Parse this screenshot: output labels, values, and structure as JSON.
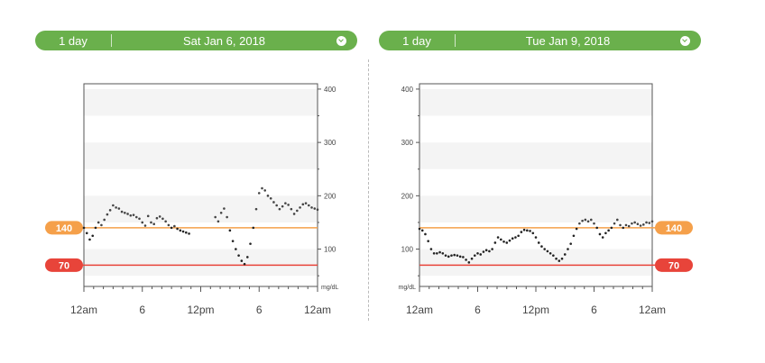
{
  "panels": [
    {
      "range_label": "1 day",
      "date_label": "Sat Jan 6, 2018",
      "icon": "chevron-down-icon"
    },
    {
      "range_label": "1 day",
      "date_label": "Tue Jan 9, 2018",
      "icon": "chevron-down-icon"
    }
  ],
  "colors": {
    "header_green": "#6ab04c",
    "high": "#f5a04a",
    "low": "#e8443a",
    "band": "#f4f4f4",
    "dots": "#222222"
  },
  "chart_data": [
    {
      "type": "scatter",
      "title": "Sat Jan 6, 2018",
      "xlabel": "",
      "ylabel": "mg/dL",
      "xlim": [
        0,
        24
      ],
      "ylim": [
        30,
        410
      ],
      "x_ticks": [
        "12am",
        "6",
        "12pm",
        "6",
        "12am"
      ],
      "y_ticks": [
        100,
        200,
        300,
        400
      ],
      "y_axis_side": "right",
      "grid_bands": [
        [
          50,
          100
        ],
        [
          150,
          200
        ],
        [
          250,
          300
        ],
        [
          350,
          400
        ]
      ],
      "thresholds": {
        "high": 140,
        "low": 70
      },
      "segments": [
        {
          "x": [
            0,
            0.3,
            0.6,
            0.9,
            1.2,
            1.5,
            1.8,
            2.1,
            2.4,
            2.7,
            3.0,
            3.3,
            3.6,
            3.9,
            4.2,
            4.5,
            4.8,
            5.1,
            5.4,
            5.7,
            6.0,
            6.3,
            6.6,
            6.9,
            7.2,
            7.5,
            7.8,
            8.1,
            8.4,
            8.7,
            9.0,
            9.3,
            9.6,
            9.9,
            10.2,
            10.5,
            10.8
          ],
          "y": [
            140,
            130,
            118,
            125,
            140,
            150,
            145,
            155,
            165,
            173,
            182,
            178,
            176,
            170,
            168,
            166,
            163,
            164,
            160,
            157,
            150,
            144,
            162,
            150,
            147,
            158,
            161,
            157,
            152,
            145,
            140,
            143,
            138,
            135,
            133,
            131,
            129
          ]
        },
        {
          "x": [
            13.5,
            13.8,
            14.1,
            14.4,
            14.7,
            15.0,
            15.3,
            15.6,
            15.9,
            16.2,
            16.5,
            16.8,
            17.1,
            17.4,
            17.7,
            18.0,
            18.3,
            18.6,
            18.9,
            19.2,
            19.5,
            19.8,
            20.1,
            20.4,
            20.7,
            21.0,
            21.3,
            21.6,
            21.9,
            22.2,
            22.5,
            22.8,
            23.1,
            23.4,
            23.7,
            24.0
          ],
          "y": [
            160,
            152,
            168,
            176,
            160,
            135,
            115,
            100,
            88,
            78,
            72,
            85,
            110,
            140,
            175,
            205,
            214,
            210,
            200,
            195,
            188,
            182,
            175,
            180,
            186,
            183,
            175,
            166,
            172,
            178,
            184,
            186,
            182,
            178,
            176,
            174
          ]
        }
      ]
    },
    {
      "type": "scatter",
      "title": "Tue Jan 9, 2018",
      "xlabel": "",
      "ylabel": "mg/dL",
      "xlim": [
        0,
        24
      ],
      "ylim": [
        30,
        410
      ],
      "x_ticks": [
        "12am",
        "6",
        "12pm",
        "6",
        "12am"
      ],
      "y_ticks": [
        100,
        200,
        300,
        400
      ],
      "y_axis_side": "left",
      "grid_bands": [
        [
          50,
          100
        ],
        [
          150,
          200
        ],
        [
          250,
          300
        ],
        [
          350,
          400
        ]
      ],
      "thresholds": {
        "high": 140,
        "low": 70
      },
      "segments": [
        {
          "x": [
            0,
            0.3,
            0.6,
            0.9,
            1.2,
            1.5,
            1.8,
            2.1,
            2.4,
            2.7,
            3.0,
            3.3,
            3.6,
            3.9,
            4.2,
            4.5,
            4.8,
            5.1,
            5.4,
            5.7,
            6.0,
            6.3,
            6.6,
            6.9,
            7.2,
            7.5,
            7.8,
            8.1,
            8.4,
            8.7,
            9.0,
            9.3,
            9.6,
            9.9,
            10.2,
            10.5,
            10.8,
            11.1,
            11.4,
            11.7,
            12.0,
            12.3,
            12.6,
            12.9,
            13.2,
            13.5,
            13.8,
            14.1,
            14.4,
            14.7,
            15.0,
            15.3,
            15.6,
            15.9,
            16.2,
            16.5,
            16.8,
            17.1,
            17.4,
            17.7,
            18.0,
            18.3,
            18.6,
            18.9,
            19.2,
            19.5,
            19.8,
            20.1,
            20.4,
            20.7,
            21.0,
            21.3,
            21.6,
            21.9,
            22.2,
            22.5,
            22.8,
            23.1,
            23.4,
            23.7,
            24.0
          ],
          "y": [
            138,
            135,
            128,
            115,
            100,
            92,
            92,
            94,
            92,
            88,
            86,
            88,
            89,
            88,
            86,
            85,
            80,
            75,
            82,
            88,
            92,
            90,
            95,
            98,
            96,
            100,
            112,
            122,
            118,
            114,
            112,
            116,
            120,
            122,
            125,
            132,
            136,
            135,
            134,
            130,
            122,
            112,
            105,
            100,
            96,
            92,
            88,
            82,
            78,
            82,
            90,
            100,
            110,
            125,
            138,
            148,
            153,
            155,
            152,
            155,
            148,
            140,
            128,
            122,
            130,
            135,
            140,
            148,
            155,
            145,
            140,
            145,
            143,
            148,
            150,
            147,
            144,
            146,
            150,
            149,
            152
          ]
        }
      ]
    }
  ]
}
